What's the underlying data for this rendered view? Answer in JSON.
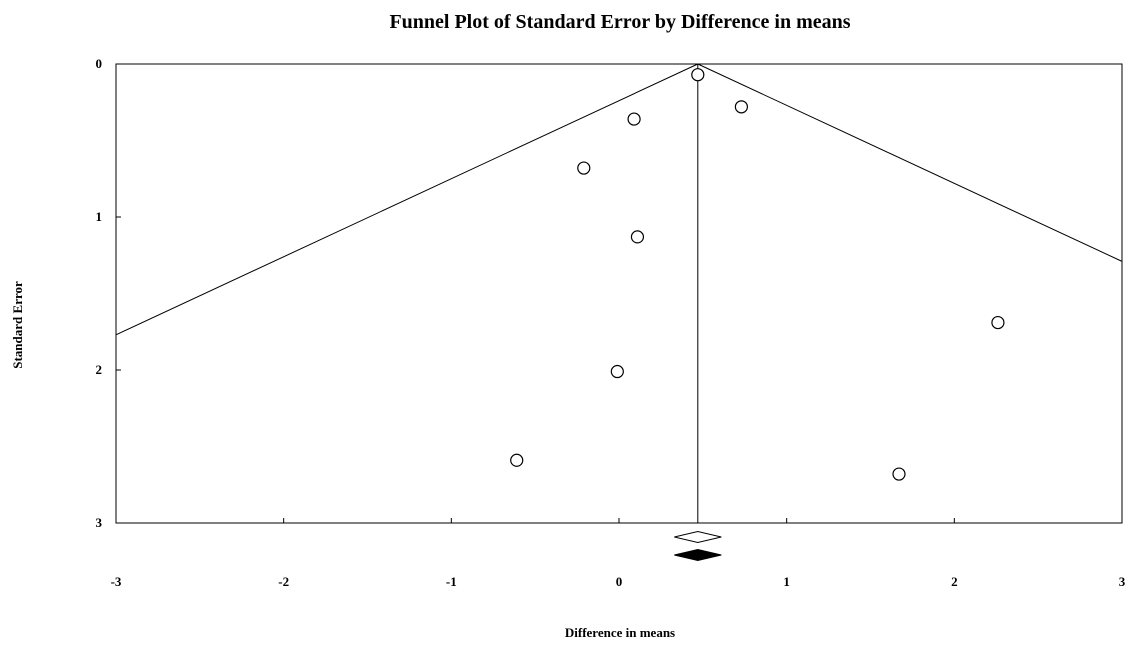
{
  "chart_data": {
    "type": "scatter",
    "title": "Funnel Plot of Standard Error by Difference in means",
    "xlabel": "Difference in means",
    "ylabel": "Standard Error",
    "xlim": [
      -3,
      3
    ],
    "ylim": [
      0,
      3
    ],
    "y_inverted": true,
    "x_ticks": [
      -3,
      -2,
      -1,
      0,
      1,
      2,
      3
    ],
    "y_ticks": [
      0,
      1,
      2,
      3
    ],
    "x_tick_labels": [
      "-3",
      "-2",
      "-1",
      "0",
      "1",
      "2",
      "3"
    ],
    "y_tick_labels": [
      "0",
      "1",
      "2",
      "3"
    ],
    "grid": false,
    "points": [
      {
        "x": 0.47,
        "y": 0.07
      },
      {
        "x": 0.73,
        "y": 0.28
      },
      {
        "x": 0.09,
        "y": 0.36
      },
      {
        "x": -0.21,
        "y": 0.68
      },
      {
        "x": 0.11,
        "y": 1.13
      },
      {
        "x": 2.26,
        "y": 1.69
      },
      {
        "x": -0.01,
        "y": 2.01
      },
      {
        "x": -0.61,
        "y": 2.59
      },
      {
        "x": 1.67,
        "y": 2.68
      }
    ],
    "funnel": {
      "center": 0.47,
      "left_edge": [
        {
          "x": 0.47,
          "y": 0
        },
        {
          "x": -3.0,
          "y": 1.77
        }
      ],
      "right_edge": [
        {
          "x": 0.47,
          "y": 0
        },
        {
          "x": 3.0,
          "y": 1.29
        }
      ]
    },
    "summary_diamonds": [
      {
        "kind": "observed",
        "fill": "#ffffff",
        "center": 0.47,
        "lower": 0.33,
        "upper": 0.61
      },
      {
        "kind": "adjusted",
        "fill": "#000000",
        "center": 0.47,
        "lower": 0.33,
        "upper": 0.61
      }
    ]
  },
  "colors": {
    "axis": "#000000",
    "marker_stroke": "#000000",
    "marker_fill": "#ffffff",
    "background": "#ffffff"
  }
}
